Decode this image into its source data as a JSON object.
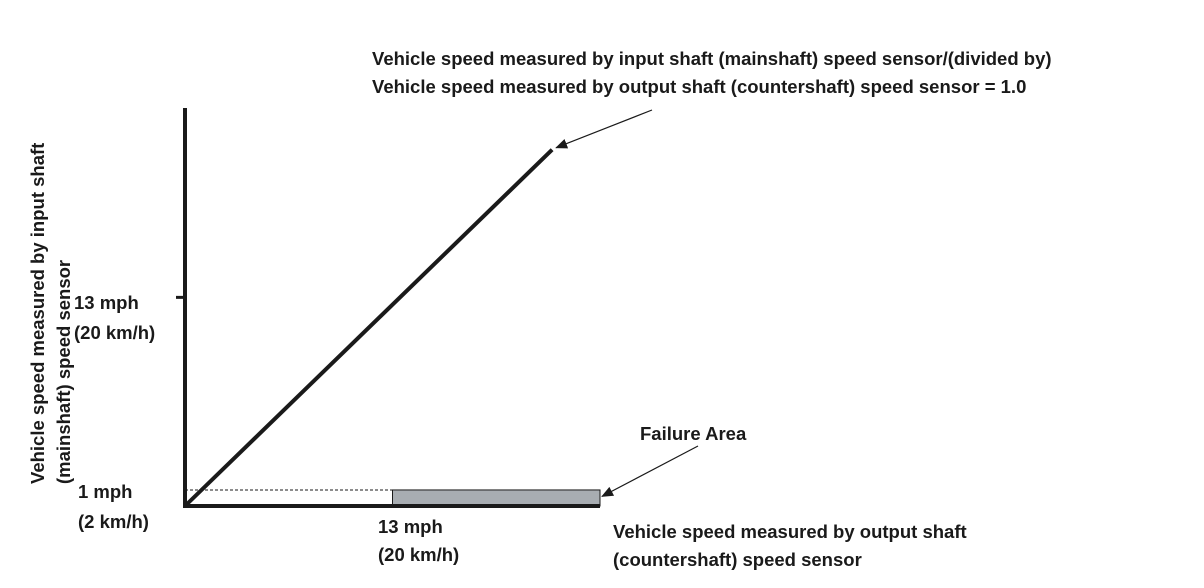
{
  "chart_data": {
    "type": "line",
    "title": "",
    "xlabel": [
      "Vehicle speed measured by output shaft",
      "(countershaft) speed sensor"
    ],
    "ylabel": [
      "Vehicle speed measured by input shaft",
      "(mainshaft) speed sensor"
    ],
    "xlim": [
      0,
      26
    ],
    "ylim": [
      0,
      24.8
    ],
    "x_ticks": [
      {
        "value": 13,
        "label": [
          "13 mph",
          "(20 km/h)"
        ]
      }
    ],
    "y_ticks": [
      {
        "value": 1,
        "label": [
          "1 mph",
          "(2 km/h)"
        ]
      },
      {
        "value": 13,
        "label": [
          "13 mph",
          "(20 km/h)"
        ]
      }
    ],
    "series": [
      {
        "x": [
          0,
          23
        ],
        "y": [
          0,
          22.2
        ]
      }
    ],
    "reference_line": {
      "y": 1,
      "x_range": [
        0,
        13
      ],
      "style": "dashed"
    },
    "regions": [
      {
        "name": "Failure Area",
        "x_range": [
          13,
          26
        ],
        "y_range": [
          0,
          1
        ],
        "color": "#a8adb2"
      }
    ],
    "annotations": [
      {
        "lines": [
          "Vehicle speed measured by input shaft (mainshaft) speed sensor/(divided by)",
          "Vehicle speed measured by output shaft (countershaft) speed sensor = 1.0"
        ],
        "points_to": {
          "x": 23,
          "y": 22.2
        }
      },
      {
        "lines": [
          "Failure Area"
        ],
        "points_to": {
          "x": 26,
          "y": 0.6
        }
      }
    ],
    "grid": false,
    "colors": {
      "line": "#1a1a1a",
      "axis": "#1a1a1a",
      "failure_area": "#a8adb2",
      "text": "#1a1a1a"
    }
  }
}
